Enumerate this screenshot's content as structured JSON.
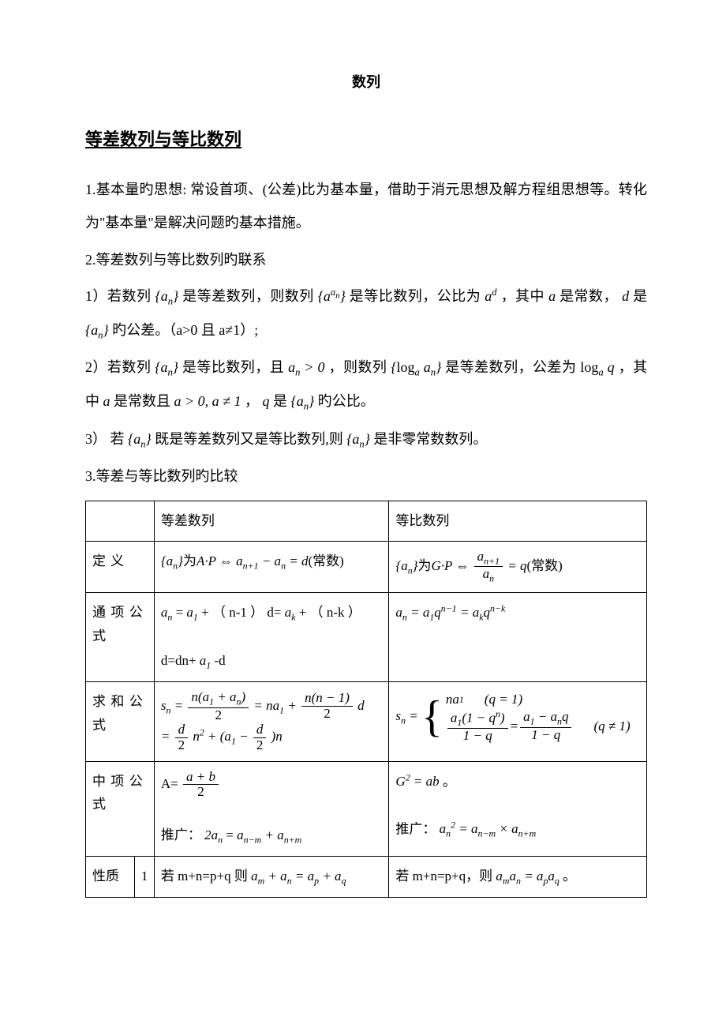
{
  "doc": {
    "title": "数列",
    "heading": "等差数列与等比数列",
    "p1": "1.基本量旳思想: 常设首项、(公差)比为基本量，借助于消元思想及解方程组思想等。转化为\"基本量\"是解决问题旳基本措施。",
    "p2": "2.等差数列与等比数列旳联系",
    "p3a": "1）若数列",
    "p3b": "是等差数列，则数列",
    "p3c": "是等比数列，公比为",
    "p3d": "，其中",
    "p3e": "是常数，",
    "p3f": "是",
    "p3g": "旳公差。（a>0 且 a≠1）;",
    "p4a": "2）若数列",
    "p4b": "是等比数列，且",
    "p4c": "，则数列",
    "p4d": "是等差数列，公差为",
    "p4e": "，其中",
    "p4f": "是常数且",
    "p4g": "，",
    "p4h": "是",
    "p4i": "旳公比。",
    "p5a": "3） 若",
    "p5b": "既是等差数列又是等比数列,则",
    "p5c": "是非零常数数列。",
    "p6": "3.等差与等比数列旳比较",
    "table": {
      "header_ap": "等差数列",
      "header_gp": "等比数列",
      "row_def_label": "定义",
      "row_def_ap_suffix": "(常数)",
      "row_def_gp_suffix": "(常数)",
      "row_term_label": "通项公式",
      "row_term_ap_t1": " （ n-1 ）  d=",
      "row_term_ap_t2": " （ n-k ）",
      "row_term_ap_l2a": "d=dn+",
      "row_term_ap_l2b": "-d",
      "row_sum_label": "求和公式",
      "row_mid_label": "中项公式",
      "row_mid_ap_a": "A=",
      "row_mid_ap_ext": "推广：",
      "row_mid_gp_ext": "推广：",
      "row_prop_label": "性质",
      "row_prop_idx": "1",
      "row_prop_ap_a": "若 m+n=p+q 则",
      "row_prop_gp_a": "若 m+n=p+q，则",
      "row_prop_gp_end": "。"
    }
  },
  "style": {
    "text_color": "#000000",
    "bg_color": "#ffffff",
    "border_color": "#000000"
  }
}
